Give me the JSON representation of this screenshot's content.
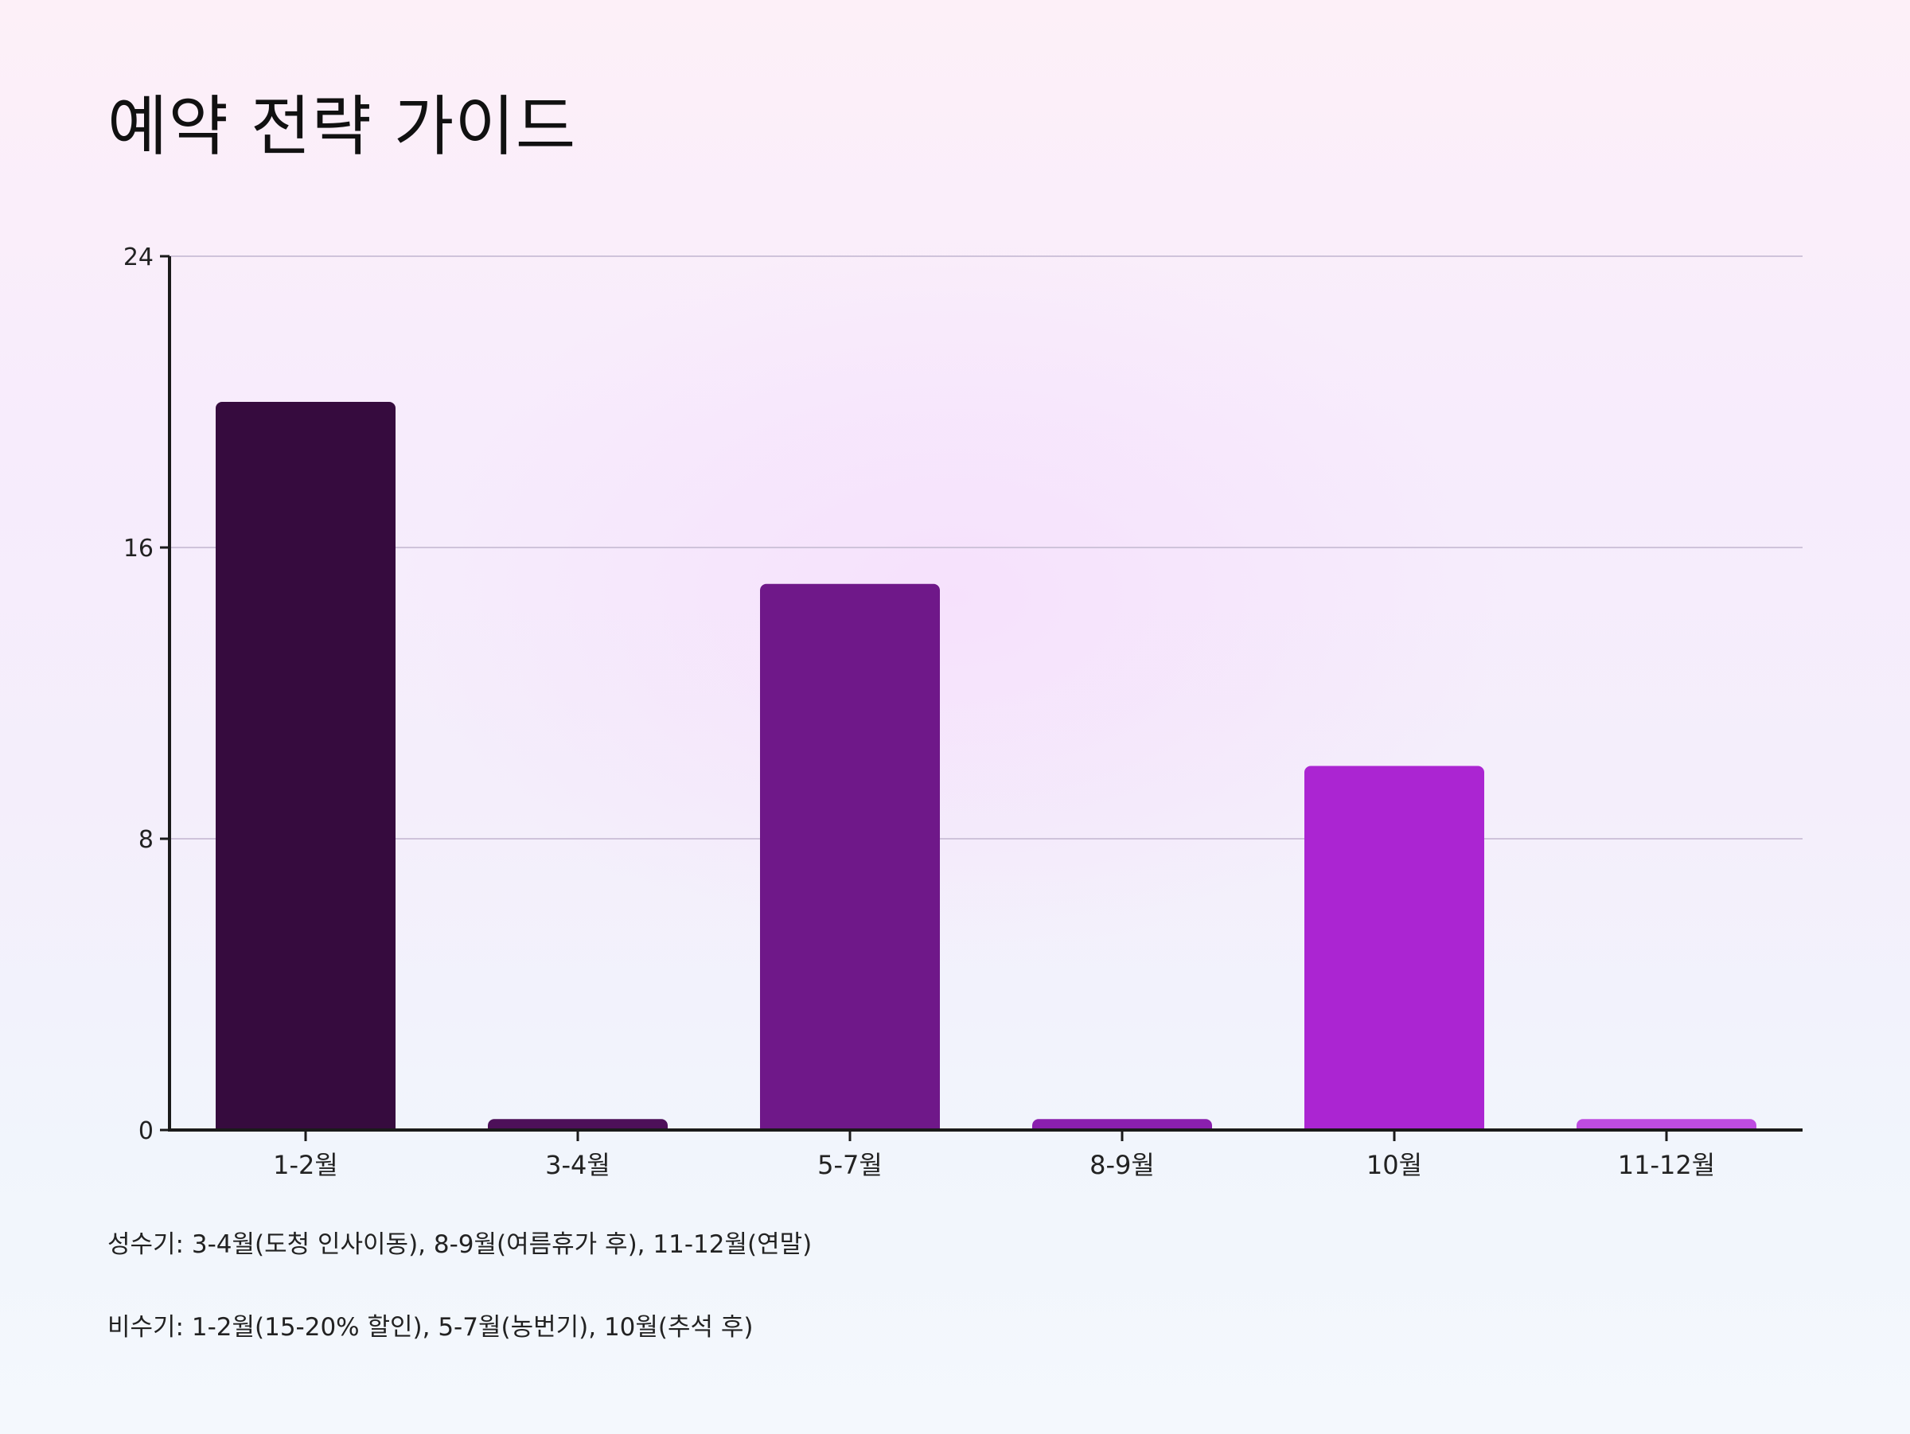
{
  "title": "예약 전략 가이드",
  "chart_data": {
    "type": "bar",
    "categories": [
      "1-2월",
      "3-4월",
      "5-7월",
      "8-9월",
      "10월",
      "11-12월"
    ],
    "values": [
      20,
      0.3,
      15,
      0.3,
      10,
      0.3
    ],
    "colors": [
      "#360b3e",
      "#4d1059",
      "#6f1889",
      "#8a1fae",
      "#ab25d2",
      "#be4ce1"
    ],
    "ylim": [
      0,
      24
    ],
    "yticks": [
      "0",
      "8",
      "16",
      "24"
    ],
    "ytick_values": [
      0,
      8,
      16,
      24
    ],
    "grid": true,
    "xlabel": "",
    "ylabel": ""
  },
  "notes": [
    "성수기: 3-4월(도청 인사이동), 8-9월(여름휴가 후), 11-12월(연말)",
    "비수기: 1-2월(15-20% 할인), 5-7월(농번기), 10월(추석 후)"
  ]
}
